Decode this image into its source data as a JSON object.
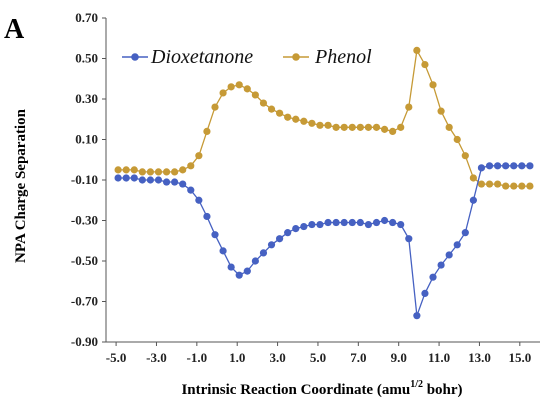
{
  "panel_label": "A",
  "chart_data": {
    "type": "line",
    "title": "",
    "xlabel": "Intrinsic  Reaction Coordinate  (amu",
    "xlabel_sup": "1/2",
    "xlabel_end": " bohr)",
    "ylabel": "NPA Charge Separation",
    "xlim": [
      -5.5,
      16.0
    ],
    "ylim": [
      -0.9,
      0.7
    ],
    "x_ticks": [
      -5.0,
      -3.0,
      -1.0,
      1.0,
      3.0,
      5.0,
      7.0,
      9.0,
      11.0,
      13.0,
      15.0
    ],
    "x_tick_labels": [
      "-5.0",
      "-3.0",
      "-1.0",
      "1.0",
      "3.0",
      "5.0",
      "7.0",
      "9.0",
      "11.0",
      "13.0",
      "15.0"
    ],
    "y_ticks": [
      0.7,
      0.5,
      0.3,
      0.1,
      -0.1,
      -0.3,
      -0.5,
      -0.7,
      -0.9
    ],
    "y_tick_labels": [
      "0.70",
      "0.50",
      "0.30",
      "0.10",
      "-0.10",
      "-0.30",
      "-0.50",
      "-0.70",
      "-0.90"
    ],
    "legend_position": "top-left",
    "grid": false,
    "series": [
      {
        "name": "Dioxetanone",
        "color": "#4661c2",
        "marker": "circle",
        "x": [
          -4.9,
          -4.5,
          -4.1,
          -3.7,
          -3.3,
          -2.9,
          -2.5,
          -2.1,
          -1.7,
          -1.3,
          -0.9,
          -0.5,
          -0.1,
          0.3,
          0.7,
          1.1,
          1.5,
          1.9,
          2.3,
          2.7,
          3.1,
          3.5,
          3.9,
          4.3,
          4.7,
          5.1,
          5.5,
          5.9,
          6.3,
          6.7,
          7.1,
          7.5,
          7.9,
          8.3,
          8.7,
          9.1,
          9.5,
          9.9,
          10.3,
          10.7,
          11.1,
          11.5,
          11.9,
          12.3,
          12.7,
          13.1,
          13.5,
          13.9,
          14.3,
          14.7,
          15.1,
          15.5
        ],
        "y": [
          -0.09,
          -0.09,
          -0.09,
          -0.1,
          -0.1,
          -0.1,
          -0.11,
          -0.11,
          -0.12,
          -0.15,
          -0.2,
          -0.28,
          -0.37,
          -0.45,
          -0.53,
          -0.57,
          -0.55,
          -0.5,
          -0.46,
          -0.42,
          -0.39,
          -0.36,
          -0.34,
          -0.33,
          -0.32,
          -0.32,
          -0.31,
          -0.31,
          -0.31,
          -0.31,
          -0.31,
          -0.32,
          -0.31,
          -0.3,
          -0.31,
          -0.32,
          -0.39,
          -0.77,
          -0.66,
          -0.58,
          -0.52,
          -0.47,
          -0.42,
          -0.36,
          -0.2,
          -0.04,
          -0.03,
          -0.03,
          -0.03,
          -0.03,
          -0.03,
          -0.03
        ]
      },
      {
        "name": "Phenol",
        "color": "#c69a36",
        "marker": "circle",
        "x": [
          -4.9,
          -4.5,
          -4.1,
          -3.7,
          -3.3,
          -2.9,
          -2.5,
          -2.1,
          -1.7,
          -1.3,
          -0.9,
          -0.5,
          -0.1,
          0.3,
          0.7,
          1.1,
          1.5,
          1.9,
          2.3,
          2.7,
          3.1,
          3.5,
          3.9,
          4.3,
          4.7,
          5.1,
          5.5,
          5.9,
          6.3,
          6.7,
          7.1,
          7.5,
          7.9,
          8.3,
          8.7,
          9.1,
          9.5,
          9.9,
          10.3,
          10.7,
          11.1,
          11.5,
          11.9,
          12.3,
          12.7,
          13.1,
          13.5,
          13.9,
          14.3,
          14.7,
          15.1,
          15.5
        ],
        "y": [
          -0.05,
          -0.05,
          -0.05,
          -0.06,
          -0.06,
          -0.06,
          -0.06,
          -0.06,
          -0.05,
          -0.03,
          0.02,
          0.14,
          0.26,
          0.33,
          0.36,
          0.37,
          0.35,
          0.32,
          0.28,
          0.25,
          0.23,
          0.21,
          0.2,
          0.19,
          0.18,
          0.17,
          0.17,
          0.16,
          0.16,
          0.16,
          0.16,
          0.16,
          0.16,
          0.15,
          0.14,
          0.16,
          0.26,
          0.54,
          0.47,
          0.37,
          0.24,
          0.16,
          0.1,
          0.02,
          -0.09,
          -0.12,
          -0.12,
          -0.12,
          -0.13,
          -0.13,
          -0.13,
          -0.13
        ]
      }
    ]
  }
}
